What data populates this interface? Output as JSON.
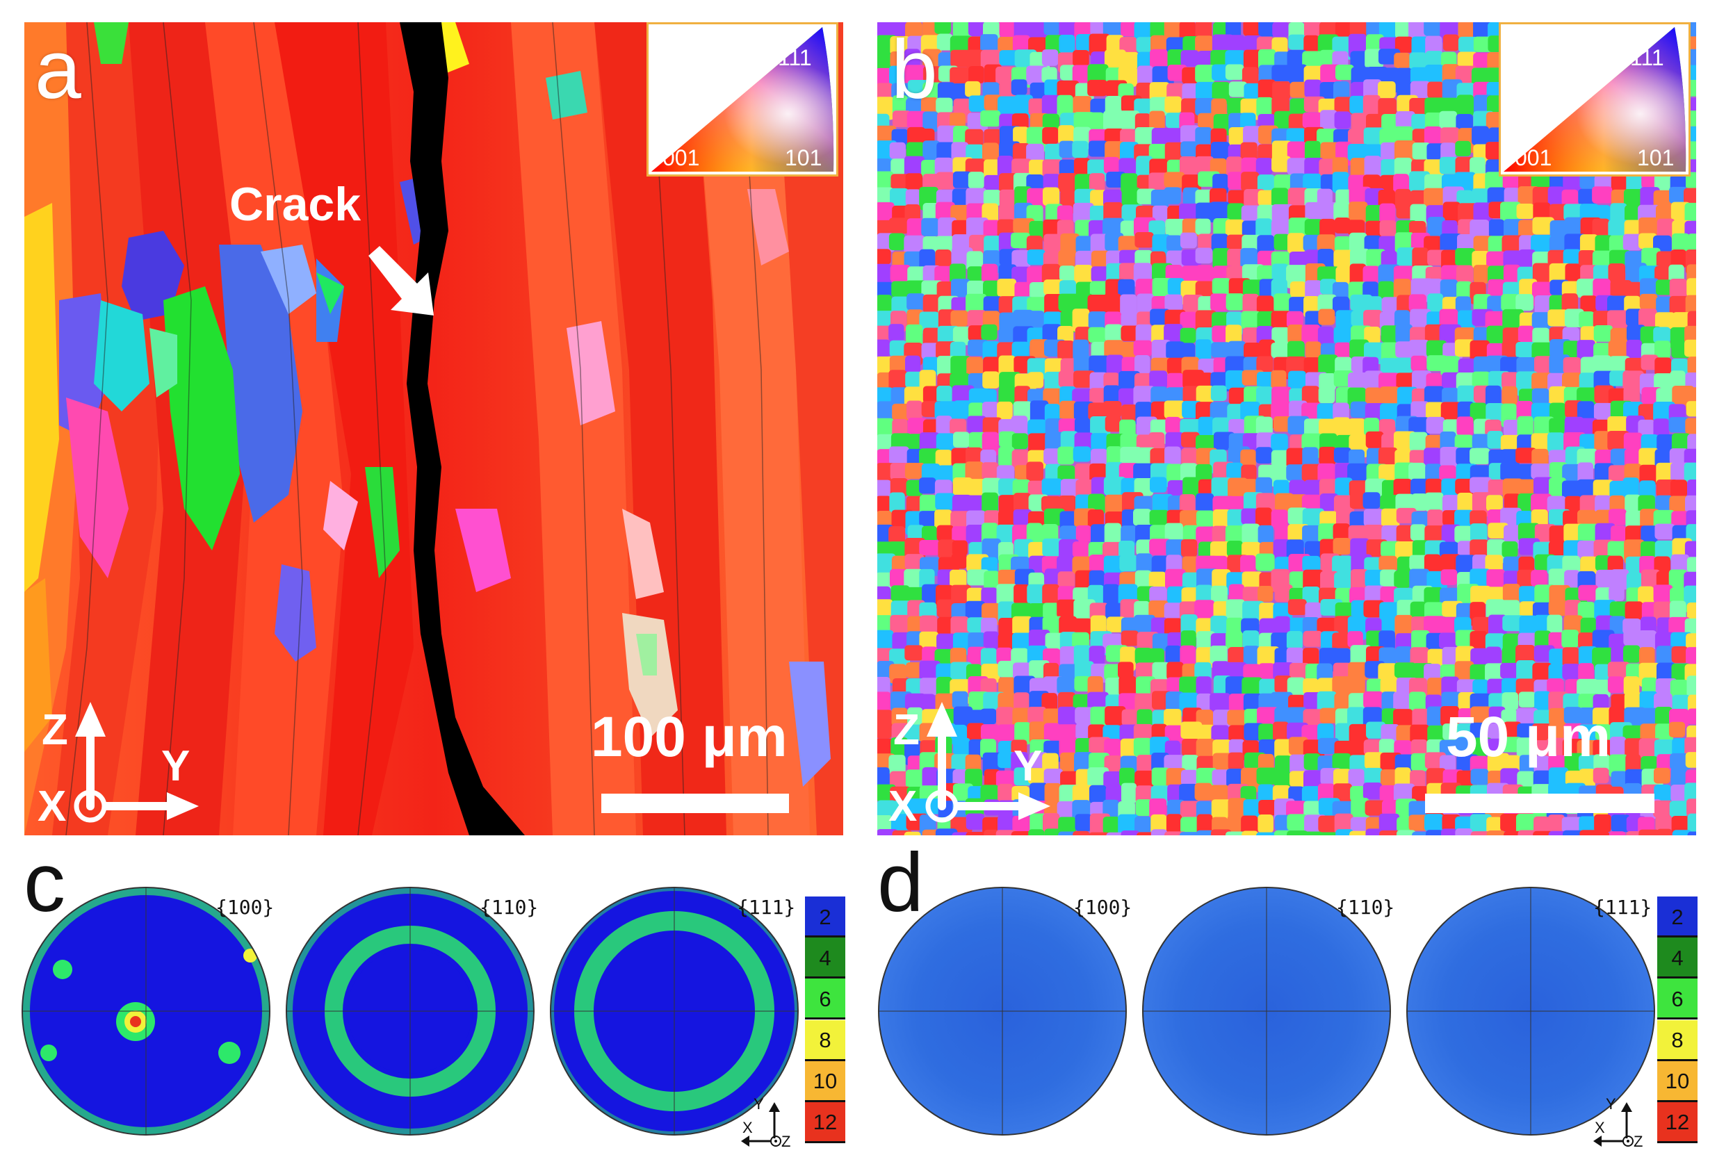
{
  "panels": {
    "a": {
      "letter": "a",
      "crack_label": "Crack",
      "scale_label": "100 μm",
      "axes": {
        "vertical": "Z",
        "horizontal": "Y",
        "normal": "X"
      }
    },
    "b": {
      "letter": "b",
      "scale_label": "50 μm",
      "axes": {
        "vertical": "Z",
        "horizontal": "Y",
        "normal": "X"
      }
    },
    "c": {
      "letter": "c",
      "pole_figures": [
        "{100}",
        "{110}",
        "{111}"
      ]
    },
    "d": {
      "letter": "d",
      "pole_figures": [
        "{100}",
        "{110}",
        "{111}"
      ]
    }
  },
  "ipf_key": {
    "labels": [
      "111",
      "001",
      "101"
    ]
  },
  "legend": {
    "values": [
      "2",
      "4",
      "6",
      "8",
      "10",
      "12"
    ],
    "colors": [
      "#1a2fd6",
      "#1e8a1e",
      "#3ee43e",
      "#f2f23a",
      "#f7b733",
      "#e8321e"
    ]
  },
  "pole_axes": {
    "up": "Y",
    "left": "X",
    "normal": "Z"
  },
  "colors": {
    "map_a_base": "#f22a1e",
    "crack": "#000000",
    "pf_c_background": "#1515e0",
    "pf_d_background": "#2f6de0",
    "accent_border": "#f0b040"
  }
}
